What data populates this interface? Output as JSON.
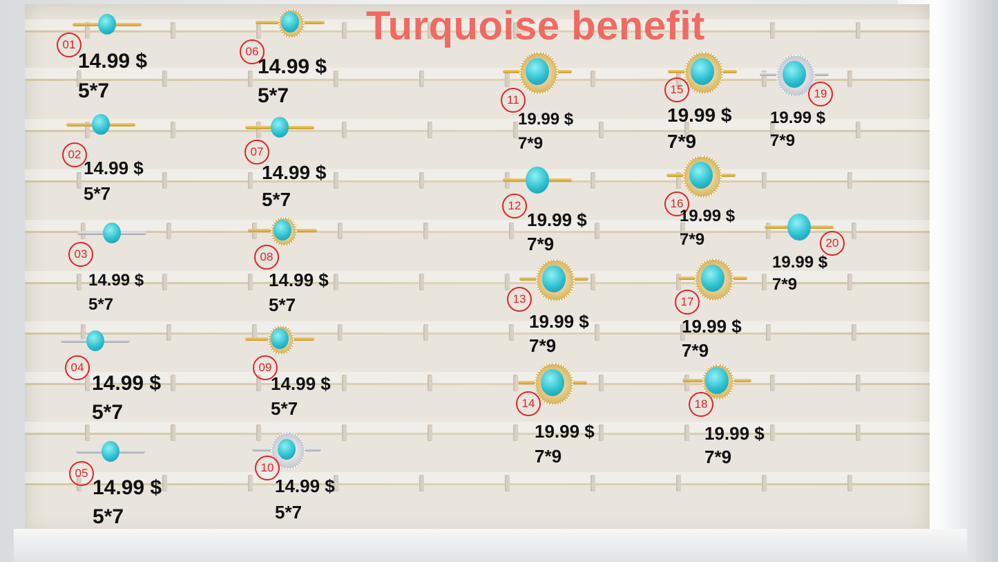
{
  "title": "Turquoise benefit",
  "colors": {
    "title": "#f06a62",
    "label_circle": "#e0242a",
    "stone": "#2bbfd0",
    "tray": "#e9e5dd"
  },
  "items": [
    {
      "label": "01",
      "price": "14.99 $",
      "size": "5*7",
      "metal": "gold",
      "halo": "none"
    },
    {
      "label": "02",
      "price": "14.99 $",
      "size": "5*7",
      "metal": "gold",
      "halo": "none"
    },
    {
      "label": "03",
      "price": "14.99 $",
      "size": "5*7",
      "metal": "silver",
      "halo": "none"
    },
    {
      "label": "04",
      "price": "14.99 $",
      "size": "5*7",
      "metal": "silver",
      "halo": "none"
    },
    {
      "label": "05",
      "price": "14.99 $",
      "size": "5*7",
      "metal": "silver",
      "halo": "none"
    },
    {
      "label": "06",
      "price": "14.99 $",
      "size": "5*7",
      "metal": "gold",
      "halo": "small"
    },
    {
      "label": "07",
      "price": "14.99 $",
      "size": "5*7",
      "metal": "gold",
      "halo": "none"
    },
    {
      "label": "08",
      "price": "14.99 $",
      "size": "5*7",
      "metal": "gold",
      "halo": "small"
    },
    {
      "label": "09",
      "price": "14.99 $",
      "size": "5*7",
      "metal": "gold",
      "halo": "small"
    },
    {
      "label": "10",
      "price": "14.99 $",
      "size": "5*7",
      "metal": "silver",
      "halo": "flower"
    },
    {
      "label": "11",
      "price": "19.99 $",
      "size": "7*9",
      "metal": "gold",
      "halo": "large"
    },
    {
      "label": "12",
      "price": "19.99 $",
      "size": "7*9",
      "metal": "gold",
      "halo": "none"
    },
    {
      "label": "13",
      "price": "19.99 $",
      "size": "7*9",
      "metal": "gold",
      "halo": "large"
    },
    {
      "label": "14",
      "price": "19.99 $",
      "size": "7*9",
      "metal": "gold",
      "halo": "large"
    },
    {
      "label": "15",
      "price": "19.99 $",
      "size": "7*9",
      "metal": "gold",
      "halo": "large"
    },
    {
      "label": "16",
      "price": "19.99 $",
      "size": "7*9",
      "metal": "gold",
      "halo": "large"
    },
    {
      "label": "17",
      "price": "19.99 $",
      "size": "7*9",
      "metal": "gold",
      "halo": "large"
    },
    {
      "label": "18",
      "price": "19.99 $",
      "size": "7*9",
      "metal": "gold",
      "halo": "small"
    },
    {
      "label": "19",
      "price": "19.99 $",
      "size": "7*9",
      "metal": "silver",
      "halo": "large"
    },
    {
      "label": "20",
      "price": "19.99 $",
      "size": "7*9",
      "metal": "gold",
      "halo": "none"
    }
  ]
}
